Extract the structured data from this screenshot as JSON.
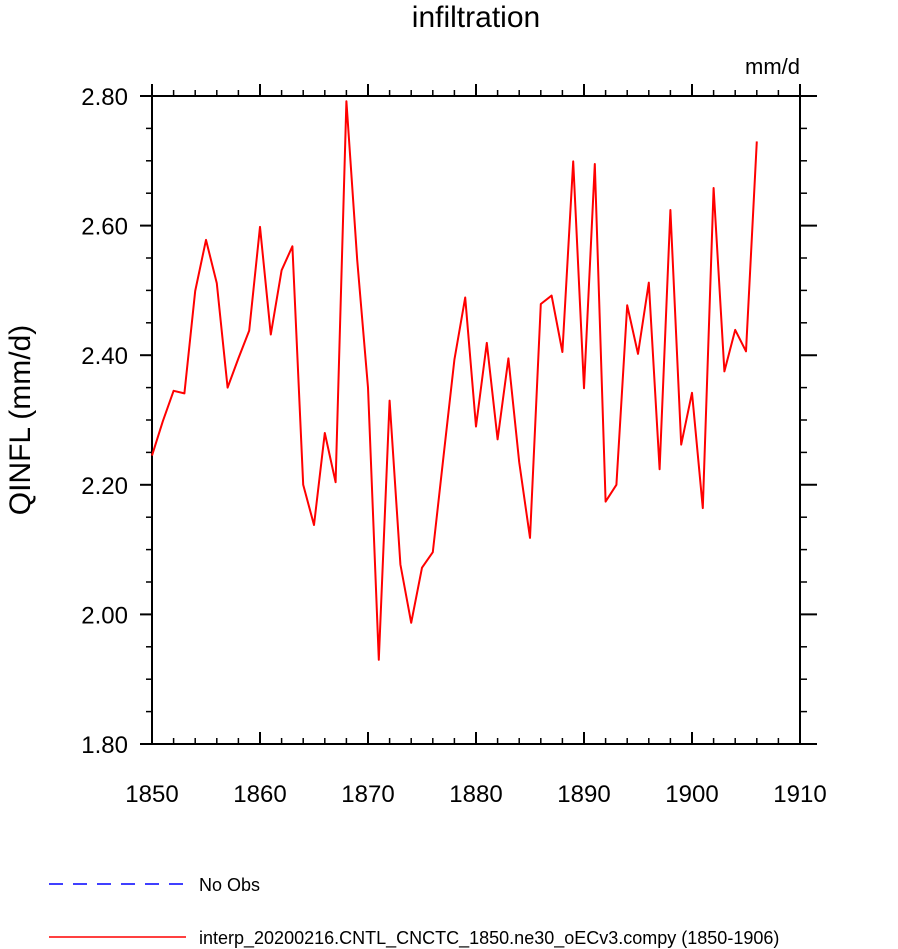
{
  "chart_data": {
    "type": "line",
    "title": "infiltration",
    "ylabel": "QINFL  (mm/d)",
    "units": "mm/d",
    "xlim": [
      1850,
      1910
    ],
    "ylim": [
      1.8,
      2.8
    ],
    "xticks": [
      "1850",
      "1860",
      "1870",
      "1880",
      "1890",
      "1900",
      "1910"
    ],
    "yticks": [
      "1.80",
      "2.00",
      "2.20",
      "2.40",
      "2.60",
      "2.80"
    ],
    "grid": false,
    "legend_position": "bottom",
    "series": [
      {
        "name": "No Obs",
        "color": "#0000ff",
        "style": "dashed",
        "x": [],
        "y": []
      },
      {
        "name": "interp_20200216.CNTL_CNCTC_1850.ne30_oECv3.compy (1850-1906)",
        "color": "#ff0000",
        "style": "solid",
        "x": [
          1850,
          1851,
          1852,
          1853,
          1854,
          1855,
          1856,
          1857,
          1858,
          1859,
          1860,
          1861,
          1862,
          1863,
          1864,
          1865,
          1866,
          1867,
          1868,
          1869,
          1870,
          1871,
          1872,
          1873,
          1874,
          1875,
          1876,
          1877,
          1878,
          1879,
          1880,
          1881,
          1882,
          1883,
          1884,
          1885,
          1886,
          1887,
          1888,
          1889,
          1890,
          1891,
          1892,
          1893,
          1894,
          1895,
          1896,
          1897,
          1898,
          1899,
          1900,
          1901,
          1902,
          1903,
          1904,
          1905,
          1906
        ],
        "y": [
          2.245,
          2.298,
          2.345,
          2.341,
          2.499,
          2.578,
          2.511,
          2.35,
          2.395,
          2.438,
          2.598,
          2.432,
          2.531,
          2.568,
          2.2,
          2.138,
          2.28,
          2.204,
          2.792,
          2.547,
          2.35,
          1.93,
          2.33,
          2.077,
          1.987,
          2.072,
          2.096,
          2.245,
          2.393,
          2.489,
          2.29,
          2.419,
          2.27,
          2.395,
          2.235,
          2.118,
          2.479,
          2.492,
          2.405,
          2.699,
          2.349,
          2.695,
          2.174,
          2.2,
          2.477,
          2.402,
          2.512,
          2.224,
          2.624,
          2.262,
          2.342,
          2.164,
          2.658,
          2.375,
          2.439,
          2.406,
          2.73
        ]
      }
    ]
  }
}
